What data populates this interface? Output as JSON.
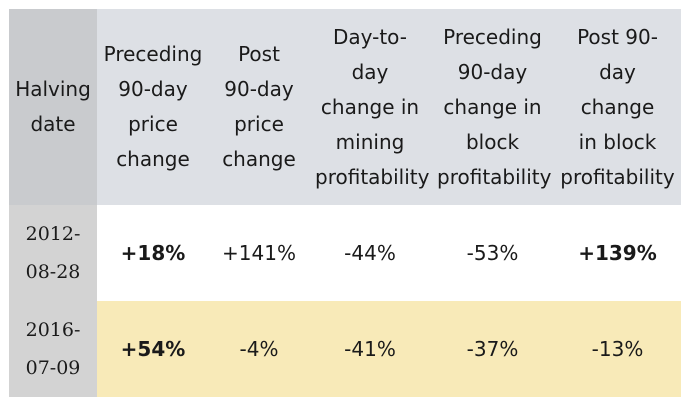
{
  "table": {
    "columns": [
      [
        "Halving",
        "date"
      ],
      [
        "Preceding",
        "90-day",
        "price",
        "change"
      ],
      [
        "Post",
        "90-day",
        "price",
        "change"
      ],
      [
        "Day-to-day",
        "change in",
        "mining",
        "profitability"
      ],
      [
        "Preceding",
        "90-day",
        "change in",
        "block",
        "profitability"
      ],
      [
        "Post 90-",
        "day change",
        "in block",
        "profitability"
      ]
    ],
    "rows": [
      {
        "date": [
          "2012-",
          "08-28"
        ],
        "preceding_price": "+18%",
        "post_price": "+141%",
        "day_to_day_mining": "-44%",
        "preceding_block": "-53%",
        "post_block": "+139%"
      },
      {
        "date": [
          "2016-",
          "07-09"
        ],
        "preceding_price": "+54%",
        "post_price": "-4%",
        "day_to_day_mining": "-41%",
        "preceding_block": "-37%",
        "post_block": "-13%"
      }
    ]
  },
  "colors": {
    "header_bg": "#dde0e5",
    "first_column_bg": "#d3d3d3",
    "row_highlight_bg": "#f8eab8"
  }
}
